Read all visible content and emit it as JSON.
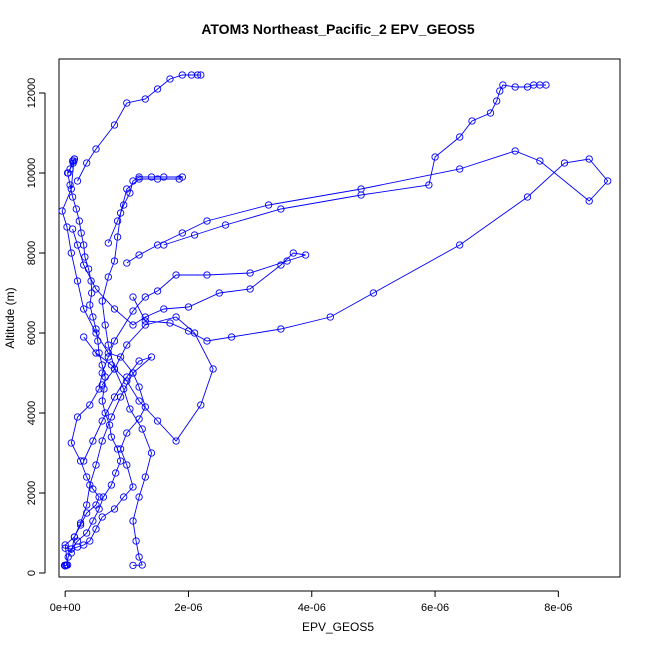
{
  "chart_data": {
    "type": "scatter",
    "title": "ATOM3 Northeast_Pacific_2 EPV_GEOS5",
    "xlabel": "EPV_GEOS5",
    "ylabel": "Altitude (m)",
    "xlim": [
      -1e-07,
      9e-06
    ],
    "ylim": [
      -100,
      12850
    ],
    "x_ticks": [
      0,
      2e-06,
      4e-06,
      6e-06,
      8e-06
    ],
    "x_tick_labels": [
      "0e+00",
      "2e-06",
      "4e-06",
      "6e-06",
      "8e-06"
    ],
    "y_ticks": [
      0,
      2000,
      4000,
      6000,
      8000,
      10000,
      12000
    ],
    "y_tick_labels": [
      "0",
      "2000",
      "4000",
      "6000",
      "8000",
      "10000",
      "12000"
    ],
    "grid": false,
    "legend": "none",
    "marker": "open-circle",
    "color": "#0000ff",
    "series": [
      {
        "points": [
          [
            1.5e-07,
            10350
          ],
          [
            1.2e-07,
            10300
          ],
          [
            8e-08,
            10100
          ],
          [
            4e-08,
            10000
          ],
          [
            8e-08,
            9700
          ],
          [
            1.2e-07,
            9400
          ],
          [
            1.8e-07,
            9100
          ],
          [
            2.3e-07,
            8800
          ],
          [
            2.6e-07,
            8500
          ],
          [
            3e-07,
            8200
          ],
          [
            3.2e-07,
            7900
          ],
          [
            3.8e-07,
            7600
          ],
          [
            4.2e-07,
            7300
          ],
          [
            4.3e-07,
            7000
          ],
          [
            4e-07,
            6700
          ],
          [
            4.5e-07,
            6400
          ],
          [
            5e-07,
            6100
          ],
          [
            5.3e-07,
            5800
          ],
          [
            5.5e-07,
            5500
          ],
          [
            6e-07,
            5200
          ],
          [
            6.5e-07,
            4900
          ],
          [
            6.3e-07,
            4600
          ],
          [
            6e-07,
            4300
          ],
          [
            6.5e-07,
            4000
          ],
          [
            7.2e-07,
            3700
          ],
          [
            7.5e-07,
            3400
          ],
          [
            8.5e-07,
            3100
          ],
          [
            9e-07,
            2800
          ],
          [
            8.2e-07,
            2500
          ],
          [
            7.5e-07,
            2200
          ],
          [
            6.2e-07,
            1900
          ],
          [
            5.5e-07,
            1600
          ],
          [
            4.5e-07,
            1300
          ],
          [
            3.5e-07,
            1000
          ],
          [
            2e-07,
            800
          ],
          [
            1e-07,
            600
          ],
          [
            5e-08,
            400
          ],
          [
            2e-08,
            200
          ],
          [
            0,
            180
          ],
          [
            -1e-08,
            190
          ]
        ]
      },
      {
        "points": [
          [
            1.2e-07,
            8600
          ],
          [
            2e-07,
            8200
          ],
          [
            3e-07,
            7700
          ],
          [
            5e-07,
            7100
          ],
          [
            8e-07,
            6600
          ],
          [
            1.1e-06,
            6200
          ],
          [
            1.3e-06,
            6400
          ],
          [
            1.6e-06,
            6600
          ],
          [
            2e-06,
            6650
          ],
          [
            2.5e-06,
            7000
          ],
          [
            3e-06,
            7100
          ],
          [
            3.5e-06,
            7700
          ],
          [
            3.7e-06,
            8000
          ],
          [
            3.9e-06,
            7950
          ],
          [
            3.6e-06,
            7800
          ],
          [
            3e-06,
            7500
          ],
          [
            2.3e-06,
            7450
          ],
          [
            1.8e-06,
            7450
          ],
          [
            1.5e-06,
            7050
          ],
          [
            1.3e-06,
            6900
          ],
          [
            1.1e-06,
            6550
          ],
          [
            8e-07,
            5800
          ],
          [
            7e-07,
            5400
          ],
          [
            6e-07,
            5000
          ],
          [
            5.5e-07,
            4600
          ],
          [
            4e-07,
            4200
          ],
          [
            2e-07,
            3900
          ],
          [
            1e-07,
            3250
          ],
          [
            2.5e-07,
            2800
          ],
          [
            3.5e-07,
            2400
          ],
          [
            4.5e-07,
            2100
          ],
          [
            5.5e-07,
            1900
          ],
          [
            5e-07,
            1700
          ],
          [
            3.5e-07,
            1500
          ],
          [
            2.5e-07,
            1200
          ],
          [
            1.5e-07,
            900
          ],
          [
            0,
            700
          ],
          [
            4e-08,
            200
          ],
          [
            0,
            180
          ],
          [
            2e-08,
            190
          ]
        ]
      },
      {
        "points": [
          [
            5e-08,
            10000
          ],
          [
            1.3e-07,
            10250
          ],
          [
            1.5e-07,
            10350
          ],
          [
            1.4e-07,
            10300
          ],
          [
            1e-07,
            9600
          ],
          [
            -5e-08,
            9050
          ],
          [
            3e-08,
            8650
          ],
          [
            1e-07,
            8000
          ],
          [
            2e-07,
            7300
          ],
          [
            3e-07,
            6600
          ],
          [
            5e-07,
            6000
          ],
          [
            7e-07,
            5500
          ],
          [
            9e-07,
            5400
          ],
          [
            1.1e-06,
            5000
          ],
          [
            1.2e-06,
            4650
          ],
          [
            1.3e-06,
            4150
          ],
          [
            1.2e-06,
            3850
          ],
          [
            1e-06,
            3500
          ],
          [
            9e-07,
            3100
          ],
          [
            1e-06,
            2700
          ],
          [
            1.1e-06,
            2150
          ],
          [
            9.5e-07,
            1900
          ],
          [
            8e-07,
            1600
          ],
          [
            6e-07,
            1400
          ],
          [
            5e-07,
            1100
          ],
          [
            4e-07,
            800
          ],
          [
            3e-07,
            700
          ],
          [
            2e-07,
            650
          ],
          [
            1e-07,
            600
          ],
          [
            0,
            620
          ]
        ]
      },
      {
        "points": [
          [
            7e-07,
            8250
          ],
          [
            8.5e-07,
            8800
          ],
          [
            9.5e-07,
            9200
          ],
          [
            1.05e-06,
            9500
          ],
          [
            1.1e-06,
            9800
          ],
          [
            1.2e-06,
            9900
          ],
          [
            1.4e-06,
            9900
          ],
          [
            1.6e-06,
            9900
          ],
          [
            1.9e-06,
            9900
          ],
          [
            1.85e-06,
            9850
          ],
          [
            1.5e-06,
            9850
          ],
          [
            1.2e-06,
            9850
          ],
          [
            1e-06,
            9600
          ],
          [
            9e-07,
            9000
          ],
          [
            8.5e-07,
            8400
          ],
          [
            8e-07,
            7800
          ],
          [
            7e-07,
            7400
          ],
          [
            6e-07,
            6800
          ],
          [
            6.5e-07,
            6200
          ],
          [
            7e-07,
            5700
          ],
          [
            8e-07,
            5100
          ],
          [
            9.5e-07,
            4600
          ],
          [
            1.05e-06,
            4100
          ],
          [
            1.25e-06,
            3600
          ],
          [
            1.4e-06,
            3000
          ],
          [
            1.3e-06,
            2400
          ],
          [
            1.2e-06,
            1900
          ],
          [
            1.1e-06,
            1300
          ],
          [
            1.15e-06,
            800
          ],
          [
            1.2e-06,
            400
          ],
          [
            1.25e-06,
            200
          ],
          [
            1.1e-06,
            190
          ]
        ]
      },
      {
        "points": [
          [
            1.1e-06,
            6900
          ],
          [
            1.3e-06,
            6300
          ],
          [
            1.7e-06,
            6250
          ],
          [
            2e-06,
            6050
          ],
          [
            2.3e-06,
            5800
          ],
          [
            2.7e-06,
            5900
          ],
          [
            3.5e-06,
            6100
          ],
          [
            4.3e-06,
            6400
          ],
          [
            5e-06,
            7000
          ],
          [
            6.4e-06,
            8200
          ],
          [
            7.5e-06,
            9400
          ],
          [
            8.1e-06,
            10250
          ],
          [
            8.5e-06,
            10350
          ],
          [
            8.8e-06,
            9800
          ],
          [
            8.5e-06,
            9300
          ],
          [
            7.7e-06,
            10300
          ],
          [
            7.3e-06,
            10550
          ],
          [
            6.4e-06,
            10100
          ],
          [
            4.8e-06,
            9600
          ],
          [
            3.3e-06,
            9200
          ],
          [
            2.3e-06,
            8800
          ],
          [
            1.9e-06,
            8500
          ],
          [
            1.5e-06,
            8200
          ],
          [
            1.2e-06,
            7950
          ],
          [
            1e-06,
            7750
          ]
        ]
      },
      {
        "points": [
          [
            1.6e-06,
            8200
          ],
          [
            2.1e-06,
            8450
          ],
          [
            2.6e-06,
            8700
          ],
          [
            3.5e-06,
            9100
          ],
          [
            4.8e-06,
            9450
          ],
          [
            5.9e-06,
            9700
          ],
          [
            6e-06,
            10400
          ],
          [
            6.4e-06,
            10900
          ],
          [
            6.6e-06,
            11300
          ],
          [
            6.9e-06,
            11500
          ],
          [
            7e-06,
            11800
          ],
          [
            7.05e-06,
            12050
          ],
          [
            7.1e-06,
            12200
          ],
          [
            7.3e-06,
            12150
          ],
          [
            7.5e-06,
            12150
          ],
          [
            7.6e-06,
            12200
          ],
          [
            7.8e-06,
            12200
          ],
          [
            7.7e-06,
            12200
          ]
        ]
      },
      {
        "points": [
          [
            2e-07,
            9800
          ],
          [
            3.5e-07,
            10250
          ],
          [
            5e-07,
            10600
          ],
          [
            8e-07,
            11200
          ],
          [
            1e-06,
            11750
          ],
          [
            1.3e-06,
            11850
          ],
          [
            1.5e-06,
            12100
          ],
          [
            1.7e-06,
            12350
          ],
          [
            1.9e-06,
            12450
          ],
          [
            2.05e-06,
            12450
          ],
          [
            2.2e-06,
            12450
          ],
          [
            2.15e-06,
            12450
          ]
        ]
      },
      {
        "points": [
          [
            3e-07,
            5900
          ],
          [
            5e-07,
            5500
          ],
          [
            7.5e-07,
            5200
          ],
          [
            1e-06,
            4800
          ],
          [
            1.2e-06,
            4300
          ],
          [
            1.5e-06,
            3800
          ],
          [
            1.8e-06,
            3300
          ],
          [
            2.2e-06,
            4200
          ],
          [
            2.4e-06,
            5100
          ],
          [
            2.1e-06,
            6000
          ],
          [
            1.8e-06,
            6400
          ],
          [
            1.3e-06,
            6200
          ],
          [
            1e-06,
            5700
          ],
          [
            8e-07,
            5100
          ],
          [
            6e-07,
            4700
          ]
        ]
      },
      {
        "points": [
          [
            3e-07,
            2800
          ],
          [
            4.5e-07,
            3300
          ],
          [
            6e-07,
            3800
          ],
          [
            8e-07,
            4400
          ],
          [
            1e-06,
            4900
          ],
          [
            1.2e-06,
            5300
          ],
          [
            1.4e-06,
            5400
          ],
          [
            1.1e-06,
            5000
          ],
          [
            9e-07,
            4400
          ],
          [
            7.5e-07,
            3900
          ],
          [
            6e-07,
            3300
          ],
          [
            5e-07,
            2700
          ],
          [
            4e-07,
            2200
          ],
          [
            3.5e-07,
            1700
          ],
          [
            2.5e-07,
            1250
          ],
          [
            1.5e-07,
            900
          ],
          [
            1e-07,
            500
          ]
        ]
      }
    ]
  }
}
